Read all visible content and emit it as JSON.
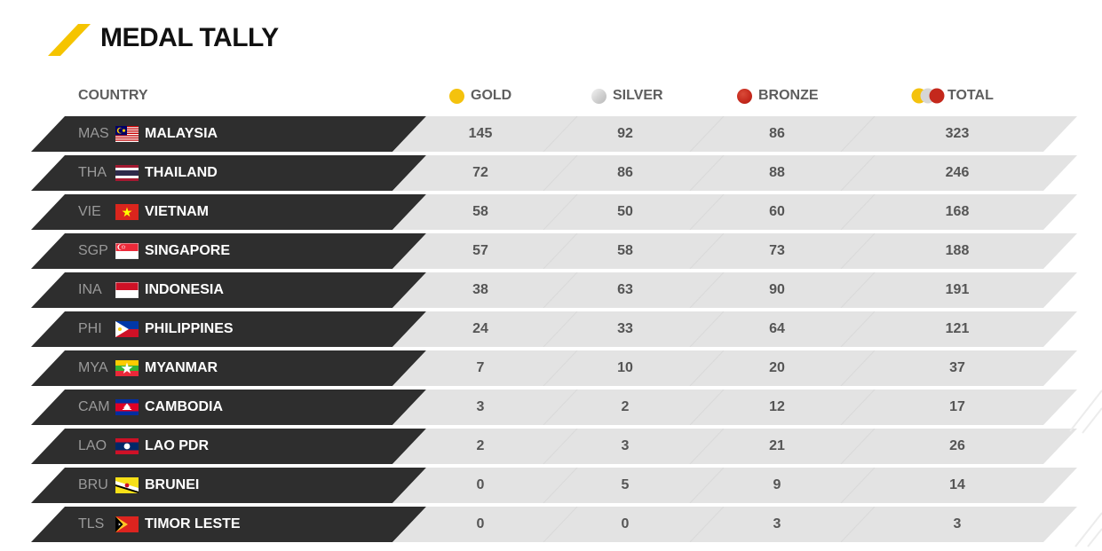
{
  "title": "MEDAL TALLY",
  "columns": {
    "country": "COUNTRY",
    "gold": "GOLD",
    "silver": "SILVER",
    "bronze": "BRONZE",
    "total": "TOTAL"
  },
  "colors": {
    "accent": "#f5c400",
    "dark_row": "#2e2e2e",
    "light_row": "#e3e3e3",
    "gold_medal": "#f4c20d",
    "silver_medal": "#d9d9d9",
    "bronze_medal": "#c4281c"
  },
  "rows": [
    {
      "code": "MAS",
      "country": "MALAYSIA",
      "flag": "malaysia-flag",
      "gold": "145",
      "silver": "92",
      "bronze": "86",
      "total": "323"
    },
    {
      "code": "THA",
      "country": "THAILAND",
      "flag": "thailand-flag",
      "gold": "72",
      "silver": "86",
      "bronze": "88",
      "total": "246"
    },
    {
      "code": "VIE",
      "country": "VIETNAM",
      "flag": "vietnam-flag",
      "gold": "58",
      "silver": "50",
      "bronze": "60",
      "total": "168"
    },
    {
      "code": "SGP",
      "country": "SINGAPORE",
      "flag": "singapore-flag",
      "gold": "57",
      "silver": "58",
      "bronze": "73",
      "total": "188"
    },
    {
      "code": "INA",
      "country": "INDONESIA",
      "flag": "indonesia-flag",
      "gold": "38",
      "silver": "63",
      "bronze": "90",
      "total": "191"
    },
    {
      "code": "PHI",
      "country": "PHILIPPINES",
      "flag": "philippines-flag",
      "gold": "24",
      "silver": "33",
      "bronze": "64",
      "total": "121"
    },
    {
      "code": "MYA",
      "country": "MYANMAR",
      "flag": "myanmar-flag",
      "gold": "7",
      "silver": "10",
      "bronze": "20",
      "total": "37"
    },
    {
      "code": "CAM",
      "country": "CAMBODIA",
      "flag": "cambodia-flag",
      "gold": "3",
      "silver": "2",
      "bronze": "12",
      "total": "17"
    },
    {
      "code": "LAO",
      "country": "LAO PDR",
      "flag": "laos-flag",
      "gold": "2",
      "silver": "3",
      "bronze": "21",
      "total": "26"
    },
    {
      "code": "BRU",
      "country": "BRUNEI",
      "flag": "brunei-flag",
      "gold": "0",
      "silver": "5",
      "bronze": "9",
      "total": "14"
    },
    {
      "code": "TLS",
      "country": "TIMOR LESTE",
      "flag": "timor-leste-flag",
      "gold": "0",
      "silver": "0",
      "bronze": "3",
      "total": "3"
    }
  ]
}
